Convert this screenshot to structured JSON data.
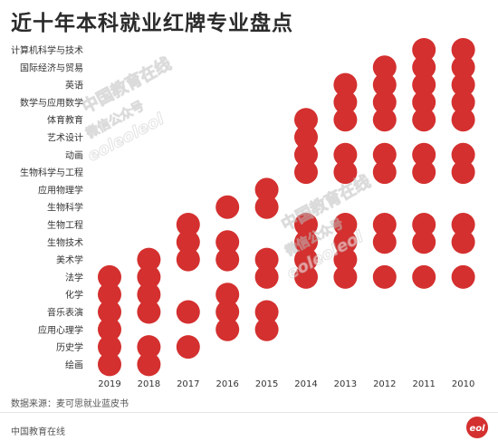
{
  "chart_data": {
    "type": "scatter",
    "title": "近十年本科就业红牌专业盘点",
    "xlabel": "",
    "ylabel": "",
    "grid": false,
    "marker_color": "#d3302f",
    "years": [
      "2019",
      "2018",
      "2017",
      "2016",
      "2015",
      "2014",
      "2013",
      "2012",
      "2011",
      "2010"
    ],
    "majors": [
      "计算机科学与技术",
      "国际经济与贸易",
      "英语",
      "数学与应用数学",
      "体育教育",
      "艺术设计",
      "动画",
      "生物科学与工程",
      "应用物理学",
      "生物科学",
      "生物工程",
      "生物技术",
      "美术学",
      "法学",
      "化学",
      "音乐表演",
      "应用心理学",
      "历史学",
      "绘画"
    ],
    "red_card": {
      "2019": [
        "法学",
        "化学",
        "音乐表演",
        "应用心理学",
        "历史学",
        "绘画"
      ],
      "2018": [
        "美术学",
        "法学",
        "化学",
        "音乐表演",
        "历史学",
        "绘画"
      ],
      "2017": [
        "生物工程",
        "生物技术",
        "美术学",
        "音乐表演",
        "历史学"
      ],
      "2016": [
        "生物科学",
        "生物技术",
        "美术学",
        "化学",
        "音乐表演",
        "应用心理学"
      ],
      "2015": [
        "应用物理学",
        "生物科学",
        "美术学",
        "法学",
        "音乐表演",
        "应用心理学"
      ],
      "2014": [
        "体育教育",
        "艺术设计",
        "动画",
        "生物科学与工程",
        "生物工程",
        "生物技术",
        "美术学",
        "法学"
      ],
      "2013": [
        "英语",
        "数学与应用数学",
        "体育教育",
        "动画",
        "生物科学与工程",
        "生物工程",
        "生物技术",
        "美术学",
        "法学"
      ],
      "2012": [
        "国际经济与贸易",
        "英语",
        "数学与应用数学",
        "体育教育",
        "动画",
        "生物科学与工程",
        "生物工程",
        "生物技术",
        "法学"
      ],
      "2011": [
        "计算机科学与技术",
        "国际经济与贸易",
        "英语",
        "数学与应用数学",
        "体育教育",
        "动画",
        "生物科学与工程",
        "生物工程",
        "生物技术",
        "法学"
      ],
      "2010": [
        "计算机科学与技术",
        "国际经济与贸易",
        "英语",
        "数学与应用数学",
        "体育教育",
        "动画",
        "生物科学与工程",
        "生物工程",
        "生物技术",
        "法学"
      ]
    }
  },
  "watermark": {
    "text_1": "中国教育在线",
    "text_2": "微信公众号",
    "text_3": "eoleoleol"
  },
  "footer": {
    "source": "数据来源：麦可思就业蓝皮书",
    "publisher": "中国教育在线",
    "logo_text": "eol"
  }
}
